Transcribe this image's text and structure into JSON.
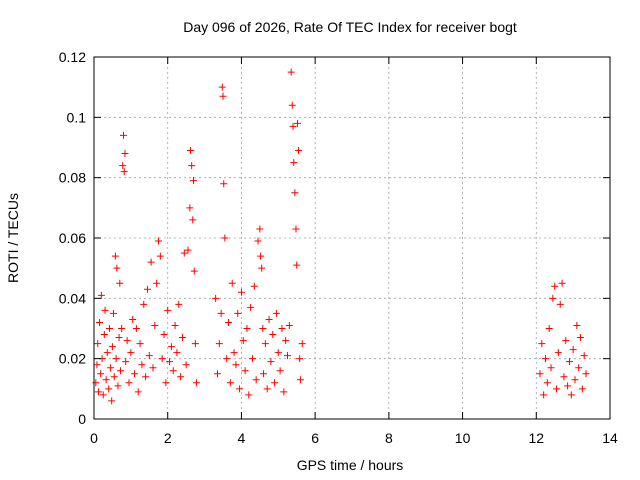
{
  "chart_data": {
    "type": "scatter",
    "title": "Day 096 of 2026, Rate Of TEC Index for receiver bogt",
    "xlabel": "GPS time / hours",
    "ylabel": "ROTI / TECUs",
    "xlim": [
      0,
      14
    ],
    "ylim": [
      0,
      0.12
    ],
    "xticks": [
      "0",
      "2",
      "4",
      "6",
      "8",
      "10",
      "12",
      "14"
    ],
    "yticks": [
      "0",
      "0.02",
      "0.04",
      "0.06",
      "0.08",
      "0.1",
      "0.12"
    ],
    "grid": true,
    "marker": "+",
    "color": "#ff0000",
    "series": [
      {
        "name": "ROTI",
        "points": [
          [
            0.05,
            0.012
          ],
          [
            0.08,
            0.018
          ],
          [
            0.1,
            0.025
          ],
          [
            0.12,
            0.009
          ],
          [
            0.15,
            0.032
          ],
          [
            0.18,
            0.015
          ],
          [
            0.2,
            0.041
          ],
          [
            0.22,
            0.02
          ],
          [
            0.25,
            0.008
          ],
          [
            0.28,
            0.028
          ],
          [
            0.3,
            0.036
          ],
          [
            0.33,
            0.013
          ],
          [
            0.36,
            0.022
          ],
          [
            0.4,
            0.01
          ],
          [
            0.42,
            0.03
          ],
          [
            0.45,
            0.017
          ],
          [
            0.48,
            0.006
          ],
          [
            0.5,
            0.024
          ],
          [
            0.53,
            0.035
          ],
          [
            0.55,
            0.014
          ],
          [
            0.58,
            0.054
          ],
          [
            0.6,
            0.02
          ],
          [
            0.62,
            0.05
          ],
          [
            0.65,
            0.011
          ],
          [
            0.68,
            0.027
          ],
          [
            0.7,
            0.045
          ],
          [
            0.72,
            0.016
          ],
          [
            0.75,
            0.03
          ],
          [
            0.78,
            0.084
          ],
          [
            0.8,
            0.094
          ],
          [
            0.82,
            0.082
          ],
          [
            0.84,
            0.088
          ],
          [
            0.86,
            0.019
          ],
          [
            0.9,
            0.026
          ],
          [
            0.95,
            0.012
          ],
          [
            1.0,
            0.022
          ],
          [
            1.05,
            0.033
          ],
          [
            1.1,
            0.015
          ],
          [
            1.15,
            0.03
          ],
          [
            1.2,
            0.009
          ],
          [
            1.25,
            0.025
          ],
          [
            1.3,
            0.018
          ],
          [
            1.35,
            0.038
          ],
          [
            1.4,
            0.014
          ],
          [
            1.45,
            0.043
          ],
          [
            1.5,
            0.021
          ],
          [
            1.55,
            0.052
          ],
          [
            1.6,
            0.017
          ],
          [
            1.65,
            0.031
          ],
          [
            1.7,
            0.045
          ],
          [
            1.75,
            0.059
          ],
          [
            1.8,
            0.054
          ],
          [
            1.85,
            0.02
          ],
          [
            1.9,
            0.028
          ],
          [
            1.95,
            0.012
          ],
          [
            2.0,
            0.036
          ],
          [
            2.05,
            0.019
          ],
          [
            2.1,
            0.024
          ],
          [
            2.15,
            0.016
          ],
          [
            2.2,
            0.031
          ],
          [
            2.25,
            0.022
          ],
          [
            2.3,
            0.038
          ],
          [
            2.35,
            0.014
          ],
          [
            2.4,
            0.027
          ],
          [
            2.45,
            0.055
          ],
          [
            2.5,
            0.018
          ],
          [
            2.55,
            0.056
          ],
          [
            2.6,
            0.07
          ],
          [
            2.62,
            0.089
          ],
          [
            2.65,
            0.084
          ],
          [
            2.68,
            0.066
          ],
          [
            2.7,
            0.079
          ],
          [
            2.72,
            0.049
          ],
          [
            2.75,
            0.025
          ],
          [
            2.78,
            0.012
          ],
          [
            3.3,
            0.04
          ],
          [
            3.35,
            0.015
          ],
          [
            3.4,
            0.025
          ],
          [
            3.45,
            0.035
          ],
          [
            3.48,
            0.11
          ],
          [
            3.5,
            0.107
          ],
          [
            3.52,
            0.078
          ],
          [
            3.55,
            0.06
          ],
          [
            3.6,
            0.02
          ],
          [
            3.65,
            0.032
          ],
          [
            3.7,
            0.012
          ],
          [
            3.75,
            0.045
          ],
          [
            3.8,
            0.022
          ],
          [
            3.85,
            0.018
          ],
          [
            3.9,
            0.035
          ],
          [
            3.95,
            0.01
          ],
          [
            4.0,
            0.042
          ],
          [
            4.05,
            0.026
          ],
          [
            4.1,
            0.016
          ],
          [
            4.15,
            0.03
          ],
          [
            4.2,
            0.008
          ],
          [
            4.25,
            0.037
          ],
          [
            4.3,
            0.02
          ],
          [
            4.35,
            0.044
          ],
          [
            4.4,
            0.013
          ],
          [
            4.45,
            0.059
          ],
          [
            4.5,
            0.063
          ],
          [
            4.52,
            0.054
          ],
          [
            4.55,
            0.05
          ],
          [
            4.58,
            0.03
          ],
          [
            4.6,
            0.015
          ],
          [
            4.65,
            0.025
          ],
          [
            4.7,
            0.01
          ],
          [
            4.75,
            0.033
          ],
          [
            4.8,
            0.019
          ],
          [
            4.85,
            0.028
          ],
          [
            4.9,
            0.012
          ],
          [
            4.95,
            0.035
          ],
          [
            5.0,
            0.022
          ],
          [
            5.05,
            0.016
          ],
          [
            5.1,
            0.03
          ],
          [
            5.15,
            0.009
          ],
          [
            5.2,
            0.026
          ],
          [
            5.25,
            0.021
          ],
          [
            5.3,
            0.031
          ],
          [
            5.35,
            0.115
          ],
          [
            5.38,
            0.104
          ],
          [
            5.4,
            0.097
          ],
          [
            5.42,
            0.085
          ],
          [
            5.45,
            0.075
          ],
          [
            5.48,
            0.063
          ],
          [
            5.5,
            0.051
          ],
          [
            5.52,
            0.098
          ],
          [
            5.55,
            0.089
          ],
          [
            5.58,
            0.02
          ],
          [
            5.6,
            0.013
          ],
          [
            5.65,
            0.025
          ],
          [
            12.1,
            0.015
          ],
          [
            12.15,
            0.025
          ],
          [
            12.2,
            0.008
          ],
          [
            12.25,
            0.02
          ],
          [
            12.3,
            0.012
          ],
          [
            12.35,
            0.03
          ],
          [
            12.4,
            0.017
          ],
          [
            12.45,
            0.04
          ],
          [
            12.5,
            0.044
          ],
          [
            12.55,
            0.01
          ],
          [
            12.6,
            0.022
          ],
          [
            12.65,
            0.038
          ],
          [
            12.7,
            0.045
          ],
          [
            12.75,
            0.014
          ],
          [
            12.8,
            0.026
          ],
          [
            12.85,
            0.011
          ],
          [
            12.9,
            0.019
          ],
          [
            12.95,
            0.008
          ],
          [
            13.0,
            0.023
          ],
          [
            13.05,
            0.013
          ],
          [
            13.1,
            0.031
          ],
          [
            13.15,
            0.017
          ],
          [
            13.2,
            0.027
          ],
          [
            13.25,
            0.01
          ],
          [
            13.3,
            0.021
          ],
          [
            13.35,
            0.015
          ]
        ]
      }
    ]
  }
}
